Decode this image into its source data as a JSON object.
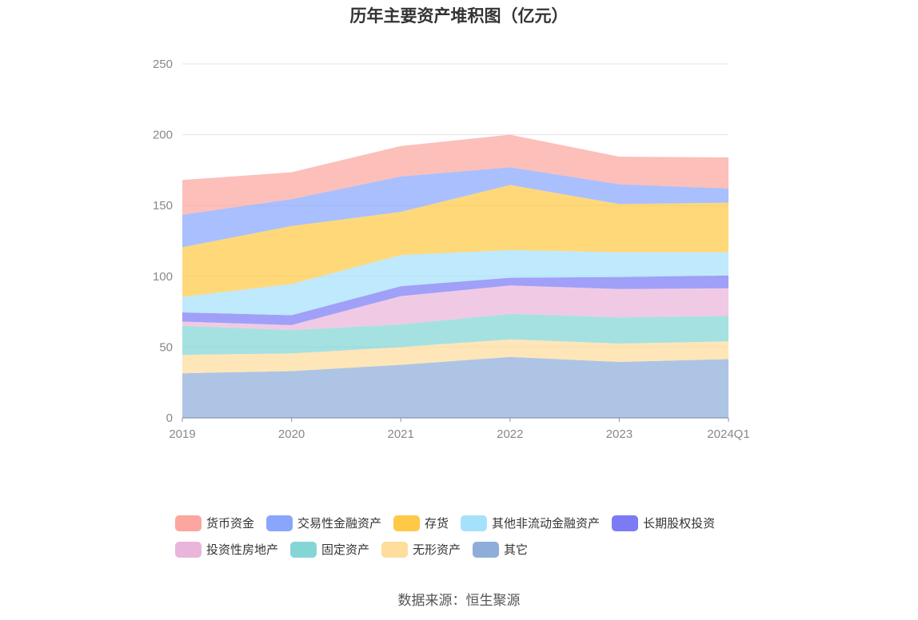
{
  "chart_data": {
    "type": "area",
    "stacked": true,
    "title": "历年主要资产堆积图（亿元）",
    "categories": [
      "2019",
      "2020",
      "2021",
      "2022",
      "2023",
      "2024Q1"
    ],
    "ylim": [
      0,
      250
    ],
    "yticks": [
      0,
      50,
      100,
      150,
      200,
      250
    ],
    "grid": true,
    "legend_position": "bottom",
    "series": [
      {
        "name": "其它",
        "color": "#8fadd9",
        "values": [
          31.5,
          33,
          37.5,
          43,
          39.5,
          41.5
        ]
      },
      {
        "name": "无形资产",
        "color": "#fedd9d",
        "values": [
          13,
          12.5,
          12.5,
          12.5,
          13,
          12.5
        ]
      },
      {
        "name": "固定资产",
        "color": "#84d6d6",
        "values": [
          20.5,
          16.5,
          16,
          18,
          18.5,
          18
        ]
      },
      {
        "name": "投资性房地产",
        "color": "#eab5db",
        "values": [
          3,
          3.5,
          20,
          20,
          20,
          19.5
        ]
      },
      {
        "name": "长期股权投资",
        "color": "#7c7bf5",
        "values": [
          6.5,
          7,
          7,
          5.5,
          8.5,
          9
        ]
      },
      {
        "name": "其他非流动金融资产",
        "color": "#a6e1fb",
        "values": [
          11,
          22,
          22,
          19.5,
          17.5,
          16.5
        ]
      },
      {
        "name": "存货",
        "color": "#ffc947",
        "values": [
          35,
          41,
          30.5,
          46,
          34,
          35
        ]
      },
      {
        "name": "交易性金融资产",
        "color": "#89a6fc",
        "values": [
          23,
          19,
          25,
          12.5,
          14,
          10
        ]
      },
      {
        "name": "货币资金",
        "color": "#fba69f",
        "values": [
          24.5,
          19,
          21.5,
          23,
          19.5,
          22
        ]
      }
    ]
  },
  "legend": {
    "row1": [
      {
        "name": "货币资金",
        "color": "#fba69f"
      },
      {
        "name": "交易性金融资产",
        "color": "#89a6fc"
      },
      {
        "name": "存货",
        "color": "#ffc947"
      },
      {
        "name": "其他非流动金融资产",
        "color": "#a6e1fb"
      },
      {
        "name": "长期股权投资",
        "color": "#7c7bf5"
      }
    ],
    "row2": [
      {
        "name": "投资性房地产",
        "color": "#eab5db"
      },
      {
        "name": "固定资产",
        "color": "#84d6d6"
      },
      {
        "name": "无形资产",
        "color": "#fedd9d"
      },
      {
        "name": "其它",
        "color": "#8fadd9"
      }
    ]
  },
  "source": "数据来源：恒生聚源"
}
